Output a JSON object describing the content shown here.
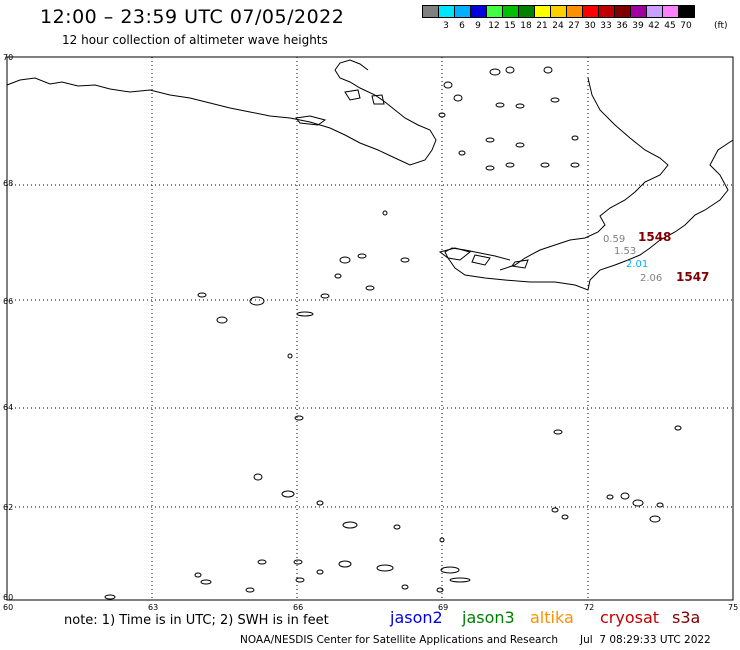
{
  "header": {
    "title": "12:00 – 23:59 UTC 07/05/2022",
    "subtitle": "12 hour collection of altimeter wave heights"
  },
  "scale": {
    "colors": [
      "#808080",
      "#00e5ff",
      "#00b0ff",
      "#0000e0",
      "#40ff40",
      "#00c000",
      "#008000",
      "#ffff00",
      "#ffd000",
      "#ff9000",
      "#ff0000",
      "#c00000",
      "#800000",
      "#a000a0",
      "#c8a0ff",
      "#ff80ff",
      "#000000"
    ],
    "labels": [
      "",
      "3",
      "6",
      "9",
      "12",
      "15",
      "18",
      "21",
      "24",
      "27",
      "30",
      "33",
      "36",
      "39",
      "42",
      "45",
      "70"
    ],
    "unit": "(ft)"
  },
  "axes": {
    "lat_labels": [
      "70",
      "68",
      "66",
      "64",
      "62",
      "60"
    ],
    "lon_labels": [
      "60",
      "63",
      "66",
      "69",
      "72",
      "75"
    ]
  },
  "observations": [
    {
      "value": "0.59",
      "color": "#808080"
    },
    {
      "value": "1.53",
      "color": "#808080"
    },
    {
      "value": "2.01",
      "color": "#00b0ff"
    },
    {
      "value": "2.06",
      "color": "#808080"
    }
  ],
  "time_labels": [
    {
      "value": "1548",
      "color": "#800000"
    },
    {
      "value": "1547",
      "color": "#800000"
    }
  ],
  "footer": {
    "note": "note: 1) Time is in UTC; 2) SWH is in feet",
    "satellites": [
      {
        "name": "jason2",
        "color": "#0000e0"
      },
      {
        "name": "jason3",
        "color": "#008000"
      },
      {
        "name": "altika",
        "color": "#ff9000"
      },
      {
        "name": "cryosat",
        "color": "#c00000"
      },
      {
        "name": "s3a",
        "color": "#800000"
      }
    ],
    "credit": "NOAA/NESDIS Center for Satellite Applications and Research",
    "timestamp": "Jul  7 08:29:33 UTC 2022"
  }
}
